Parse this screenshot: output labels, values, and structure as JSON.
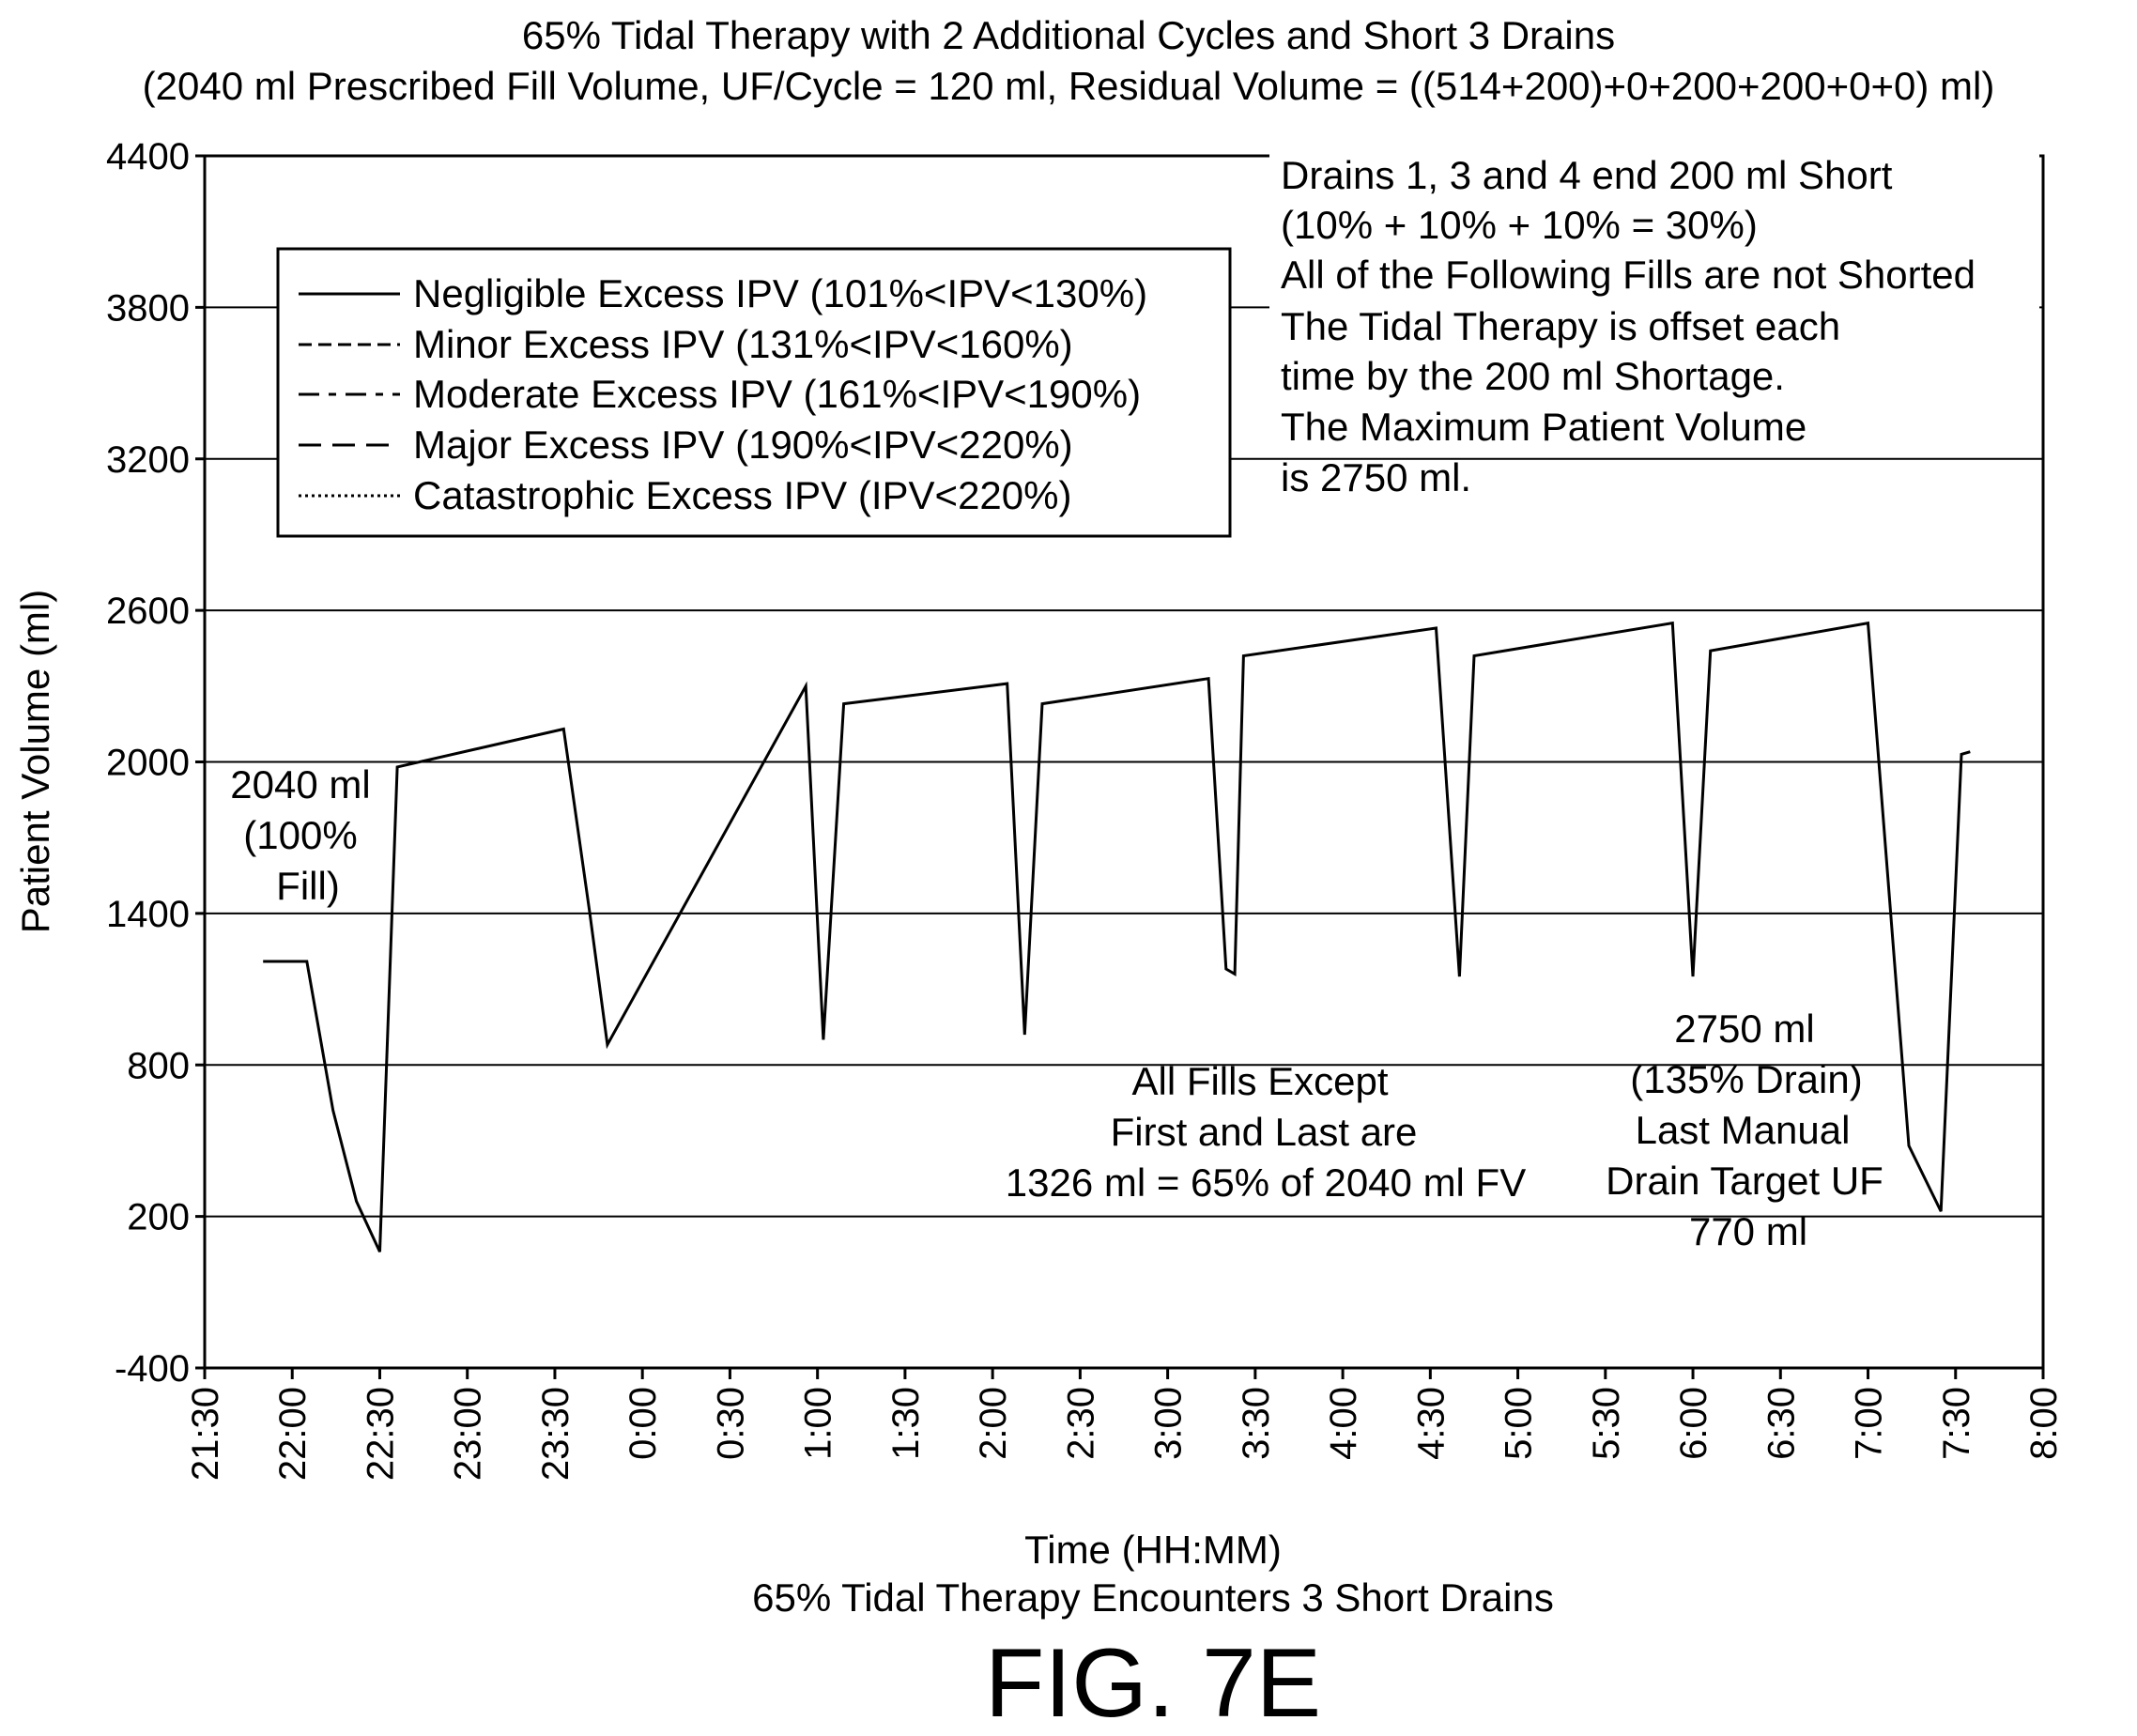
{
  "chart_data": {
    "type": "line",
    "title": "65% Tidal Therapy with 2 Additional Cycles and Short 3 Drains",
    "subtitle": "(2040 ml Prescribed Fill Volume, UF/Cycle = 120 ml, Residual Volume = ((514+200)+0+200+200+0+0) ml)",
    "ylabel": "Patient Volume (ml)",
    "xlabel": "Time (HH:MM)",
    "caption": "65% Tidal Therapy Encounters 3 Short Drains",
    "figure_label": "FIG. 7E",
    "ylim": [
      -400,
      4400
    ],
    "yticks": [
      "4400",
      "3800",
      "3200",
      "2600",
      "2000",
      "1400",
      "800",
      "200",
      "-400"
    ],
    "xlim_hours": [
      21.5,
      32.0
    ],
    "xticks": [
      "21:30",
      "22:00",
      "22:30",
      "23:00",
      "23:30",
      "0:00",
      "0:30",
      "1:00",
      "1:30",
      "2:00",
      "2:30",
      "3:00",
      "3:30",
      "4:00",
      "4:30",
      "5:00",
      "5:30",
      "6:00",
      "6:30",
      "7:00",
      "7:30",
      "8:00"
    ],
    "grid": "horizontal",
    "legend": {
      "placement": "upper-left",
      "entries": [
        {
          "label": "Negligible Excess IPV (101%<IPV<130%)",
          "style": "solid"
        },
        {
          "label": "Minor Excess IPV (131%<IPV<160%)",
          "style": "dashed"
        },
        {
          "label": "Moderate Excess IPV (161%<IPV<190%)",
          "style": "dash-dot"
        },
        {
          "label": "Major Excess IPV (190%<IPV<220%)",
          "style": "long-dash"
        },
        {
          "label": "Catastrophic Excess IPV (IPV<220%)",
          "style": "dotted"
        }
      ]
    },
    "series": [
      {
        "style": "solid",
        "x": [
          "21:50",
          "22:05",
          "22:14",
          "22:22",
          "22:30",
          "22:36",
          "23:33",
          "23:42",
          "23:48",
          "0:56",
          "1:02",
          "1:09",
          "2:05",
          "2:11",
          "2:17",
          "3:14",
          "3:20",
          "3:23",
          "3:26",
          "4:32",
          "4:40",
          "4:45",
          "5:53",
          "6:00",
          "6:06",
          "7:00",
          "7:14",
          "7:25",
          "7:32",
          "7:35"
        ],
        "y": [
          1210,
          1210,
          620,
          260,
          60,
          1980,
          2130,
          1400,
          880,
          2300,
          900,
          2230,
          2310,
          920,
          2230,
          2330,
          1180,
          1160,
          2420,
          2530,
          1150,
          2420,
          2550,
          1150,
          2440,
          2550,
          480,
          220,
          2030,
          2040
        ]
      }
    ],
    "annotations": {
      "drains_short": [
        "Drains 1, 3 and 4 end 200 ml Short",
        "(10% + 10% + 10% = 30%)",
        "All of the Following Fills are not Shorted",
        "The Tidal Therapy is offset each",
        "time by the 200 ml Shortage.",
        "The Maximum Patient Volume",
        "is 2750 ml."
      ],
      "first_fill": [
        "2040 ml",
        "(100%",
        "Fill)"
      ],
      "all_fills": [
        "All Fills Except",
        "First and Last are",
        "1326 ml = 65% of 2040 ml FV"
      ],
      "last_drain": [
        "2750 ml",
        "(135% Drain)",
        "Last Manual",
        "Drain Target UF",
        "770 ml"
      ]
    }
  }
}
